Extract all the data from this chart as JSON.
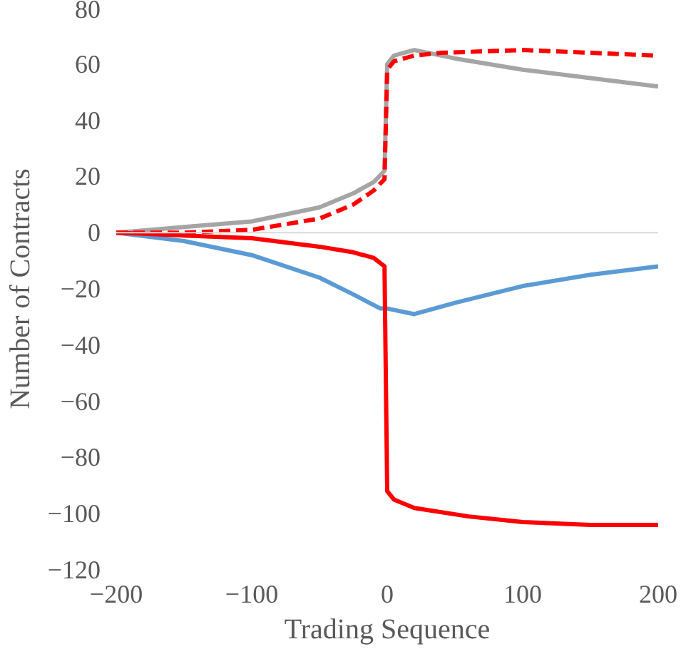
{
  "chart_data": {
    "type": "line",
    "xlabel": "Trading Sequence",
    "ylabel": "Number of Contracts",
    "xlim": [
      -200,
      200
    ],
    "xticks": [
      -200,
      -100,
      0,
      100,
      200
    ],
    "ylim": [
      -120,
      80
    ],
    "yticks": [
      -120,
      -100,
      -80,
      -60,
      -40,
      -20,
      0,
      20,
      40,
      60,
      80
    ],
    "grid": false,
    "marker": "none",
    "ref_lines": [
      {
        "axis": "y",
        "value": 0,
        "color": "#d9d9d9"
      }
    ],
    "series": [
      {
        "color": "#a5a5a5",
        "line_style": "solid",
        "x": [
          -200,
          -150,
          -100,
          -50,
          -25,
          -10,
          -2,
          0,
          5,
          20,
          50,
          100,
          150,
          200
        ],
        "values": [
          0,
          2,
          4,
          9,
          14,
          18,
          22,
          60,
          63,
          65,
          62,
          58,
          55,
          52
        ]
      },
      {
        "color": "#ff0000",
        "line_style": "dashed",
        "x": [
          -200,
          -150,
          -100,
          -50,
          -25,
          -10,
          -2,
          0,
          5,
          20,
          40,
          100,
          150,
          200
        ],
        "values": [
          0,
          0,
          1,
          5,
          10,
          15,
          19,
          58,
          61,
          63,
          64,
          65,
          64,
          63
        ]
      },
      {
        "color": "#5b9bd5",
        "line_style": "solid",
        "x": [
          -200,
          -150,
          -100,
          -50,
          -25,
          -5,
          0,
          20,
          50,
          100,
          150,
          200
        ],
        "values": [
          0,
          -3,
          -8,
          -16,
          -22,
          -27,
          -27,
          -29,
          -25,
          -19,
          -15,
          -12
        ]
      },
      {
        "color": "#ff0000",
        "line_style": "solid",
        "x": [
          -200,
          -150,
          -100,
          -50,
          -25,
          -10,
          -2,
          0,
          5,
          20,
          60,
          100,
          150,
          200
        ],
        "values": [
          0,
          -1,
          -2,
          -5,
          -7,
          -9,
          -12,
          -92,
          -95,
          -98,
          -101,
          -103,
          -104,
          -104
        ]
      }
    ]
  }
}
